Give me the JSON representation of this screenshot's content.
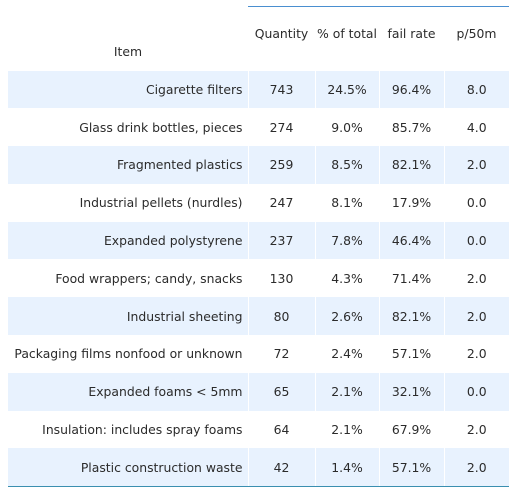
{
  "chart_data": {
    "type": "table",
    "columns": [
      "Item",
      "Quantity",
      "% of total",
      "fail rate",
      "p/50m"
    ],
    "rows": [
      [
        "Cigarette filters",
        "743",
        "24.5%",
        "96.4%",
        "8.0"
      ],
      [
        "Glass drink bottles, pieces",
        "274",
        "9.0%",
        "85.7%",
        "4.0"
      ],
      [
        "Fragmented plastics",
        "259",
        "8.5%",
        "82.1%",
        "2.0"
      ],
      [
        "Industrial pellets (nurdles)",
        "247",
        "8.1%",
        "17.9%",
        "0.0"
      ],
      [
        "Expanded polystyrene",
        "237",
        "7.8%",
        "46.4%",
        "0.0"
      ],
      [
        "Food wrappers; candy, snacks",
        "130",
        "4.3%",
        "71.4%",
        "2.0"
      ],
      [
        "Industrial sheeting",
        "80",
        "2.6%",
        "82.1%",
        "2.0"
      ],
      [
        "Packaging films nonfood or unknown",
        "72",
        "2.4%",
        "57.1%",
        "2.0"
      ],
      [
        "Expanded foams < 5mm",
        "65",
        "2.1%",
        "32.1%",
        "0.0"
      ],
      [
        "Insulation: includes spray foams",
        "64",
        "2.1%",
        "67.9%",
        "2.0"
      ],
      [
        "Plastic construction waste",
        "42",
        "1.4%",
        "57.1%",
        "2.0"
      ]
    ]
  },
  "colors": {
    "shaded_row": "#e8f2fe",
    "header_rule": "#4a8fd0",
    "bottom_rule": "#3a8fb0",
    "text": "#2b2b2b"
  }
}
